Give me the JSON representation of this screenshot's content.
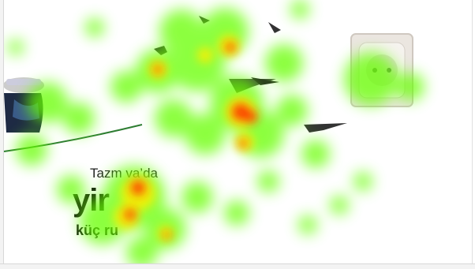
{
  "caption": {
    "line1": "Tazm      va’da",
    "line2": "yir",
    "line3": "küç           ru"
  },
  "colors": {
    "heat_low": "#7CFC00",
    "heat_mid": "#FFFF00",
    "heat_high": "#FF2200",
    "socket_plate": "#ebe6e0",
    "appliance_body": "#1e2a44"
  },
  "icons": {
    "socket": "wall-socket-icon",
    "appliance": "kettle-appliance-icon",
    "birds": "bird-icon"
  }
}
